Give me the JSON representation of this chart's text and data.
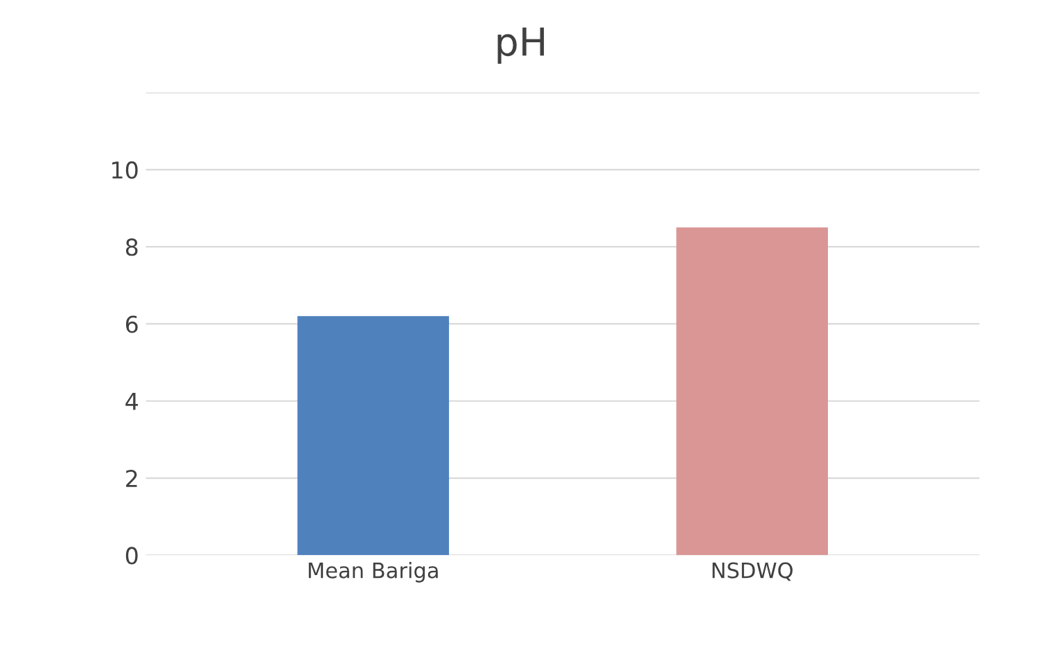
{
  "chart_data": {
    "type": "bar",
    "title": "pH",
    "categories": [
      "Mean Bariga",
      "NSDWQ"
    ],
    "values": [
      6.2,
      8.5
    ],
    "colors": [
      "#4f81bd",
      "#d99694"
    ],
    "ylim": [
      0,
      12
    ],
    "yticks": [
      0,
      2,
      4,
      6,
      8,
      10,
      {
        "value": 12,
        "label": null
      }
    ],
    "grid": "y"
  }
}
